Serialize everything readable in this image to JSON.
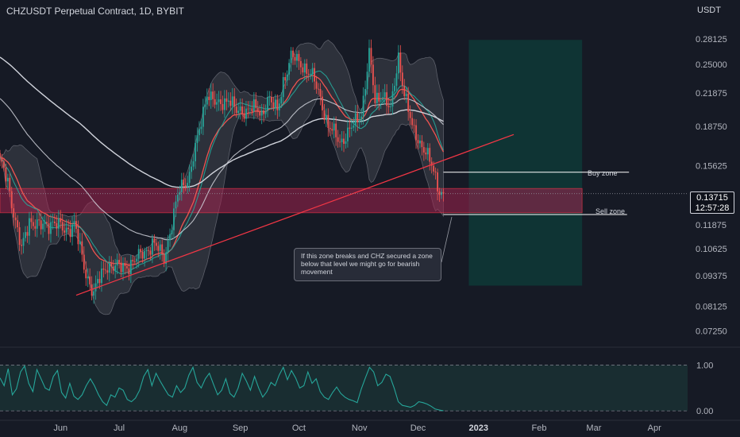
{
  "header": {
    "title": "CHZUSDT Perpetual Contract, 1D, BYBIT",
    "currency": "USDT"
  },
  "price_tag": {
    "price": "0.13715",
    "countdown": "12:57:28"
  },
  "annotations": {
    "buy_zone": "Buy zone",
    "sell_zone": "Sell zone",
    "note": "If this zone breaks and CHZ secured a zone below that level we might go for bearish movement"
  },
  "colors": {
    "background": "#161a25",
    "up": "#26a69a",
    "down": "#ef5350",
    "trendline": "#f23645",
    "zone_fill": "#a3224f",
    "target_fill": "#0e3b38",
    "bb_fill": "#4a4d57",
    "ema_fast": "#ef5350",
    "sma_mid": "#26a69a",
    "ma_long": "#d1d4dc"
  },
  "chart_data": [
    {
      "type": "candlestick",
      "title": "CHZUSDT Perpetual Contract, 1D, BYBIT",
      "ylabel": "USDT",
      "y_scale": "log",
      "ylim": [
        0.0685,
        0.305
      ],
      "y_ticks": [
        "0.28125",
        "0.25000",
        "0.21875",
        "0.18750",
        "0.15625",
        "0.13715",
        "0.11875",
        "0.10625",
        "0.09375",
        "0.08125",
        "0.07250"
      ],
      "x_ticks": [
        "Jun",
        "Jul",
        "Aug",
        "Sep",
        "Oct",
        "Nov",
        "Dec",
        "2023",
        "Feb",
        "Mar",
        "Apr"
      ],
      "x_tick_dates": [
        "2022-06-01",
        "2022-07-01",
        "2022-08-01",
        "2022-09-01",
        "2022-10-01",
        "2022-11-01",
        "2022-12-01",
        "2023-01-01",
        "2023-02-01",
        "2023-03-01",
        "2023-04-01"
      ],
      "x_range": [
        "2022-05-01",
        "2023-04-18"
      ],
      "grid": false,
      "close_anchors": [
        [
          "2022-05-01",
          0.158
        ],
        [
          "2022-05-05",
          0.146
        ],
        [
          "2022-05-09",
          0.12
        ],
        [
          "2022-05-12",
          0.105
        ],
        [
          "2022-05-16",
          0.122
        ],
        [
          "2022-05-22",
          0.117
        ],
        [
          "2022-05-28",
          0.121
        ],
        [
          "2022-06-03",
          0.115
        ],
        [
          "2022-06-08",
          0.12
        ],
        [
          "2022-06-13",
          0.097
        ],
        [
          "2022-06-18",
          0.087
        ],
        [
          "2022-06-25",
          0.099
        ],
        [
          "2022-07-02",
          0.097
        ],
        [
          "2022-07-10",
          0.101
        ],
        [
          "2022-07-18",
          0.109
        ],
        [
          "2022-07-24",
          0.102
        ],
        [
          "2022-08-01",
          0.14
        ],
        [
          "2022-08-06",
          0.15
        ],
        [
          "2022-08-10",
          0.175
        ],
        [
          "2022-08-15",
          0.221
        ],
        [
          "2022-08-20",
          0.205
        ],
        [
          "2022-08-26",
          0.215
        ],
        [
          "2022-08-30",
          0.199
        ],
        [
          "2022-09-06",
          0.205
        ],
        [
          "2022-09-12",
          0.198
        ],
        [
          "2022-09-15",
          0.215
        ],
        [
          "2022-09-20",
          0.2
        ],
        [
          "2022-09-23",
          0.232
        ],
        [
          "2022-09-27",
          0.258
        ],
        [
          "2022-10-03",
          0.25
        ],
        [
          "2022-10-08",
          0.235
        ],
        [
          "2022-10-12",
          0.215
        ],
        [
          "2022-10-16",
          0.187
        ],
        [
          "2022-10-22",
          0.175
        ],
        [
          "2022-10-28",
          0.185
        ],
        [
          "2022-11-02",
          0.2
        ],
        [
          "2022-11-06",
          0.262
        ],
        [
          "2022-11-09",
          0.21
        ],
        [
          "2022-11-13",
          0.22
        ],
        [
          "2022-11-17",
          0.2
        ],
        [
          "2022-11-21",
          0.26
        ],
        [
          "2022-11-24",
          0.22
        ],
        [
          "2022-11-28",
          0.185
        ],
        [
          "2022-12-04",
          0.17
        ],
        [
          "2022-12-08",
          0.155
        ],
        [
          "2022-12-12",
          0.14
        ],
        [
          "2022-12-14",
          0.13715
        ]
      ],
      "horizontal_zone": {
        "low": 0.1255,
        "high": 0.1405,
        "from": "2022-05-01",
        "to": "2023-02-23"
      },
      "buy_zone_line": {
        "price": 0.1515,
        "from": "2022-12-14",
        "to": "2023-03-19"
      },
      "sell_zone_line": {
        "price": 0.1245,
        "from": "2022-12-14",
        "to": "2023-03-18"
      },
      "trendline": [
        [
          "2022-06-09",
          0.0856
        ],
        [
          "2023-01-19",
          0.1805
        ]
      ],
      "target_box": {
        "low": 0.0895,
        "high": 0.28,
        "from": "2022-12-27",
        "to": "2023-02-23"
      },
      "current_price": 0.13715,
      "indicators": [
        "Bollinger Bands",
        "EMA (red)",
        "Basis (green)",
        "Long MA (white)"
      ]
    },
    {
      "type": "line",
      "ylim": [
        -0.05,
        1.25
      ],
      "y_ticks": [
        "1.00",
        "0.00"
      ],
      "band": [
        0.0,
        1.0
      ],
      "series": [
        {
          "values": [
            0.72,
            0.55,
            0.92,
            0.35,
            0.48,
            0.85,
            0.98,
            0.6,
            0.42,
            0.9,
            0.7,
            0.5,
            0.45,
            0.75,
            0.88,
            0.4,
            0.28,
            0.6,
            0.32,
            0.25,
            0.35,
            0.55,
            0.7,
            0.55,
            0.35,
            0.2,
            0.12,
            0.35,
            0.3,
            0.5,
            0.45,
            0.25,
            0.2,
            0.28,
            0.45,
            0.75,
            0.9,
            0.55,
            0.82,
            0.65,
            0.5,
            0.35,
            0.3,
            0.55,
            0.4,
            0.5,
            0.78,
            0.95,
            0.62,
            0.5,
            0.7,
            0.82,
            0.58,
            0.35,
            0.45,
            0.7,
            0.38,
            0.3,
            0.5,
            0.82,
            0.65,
            0.45,
            0.75,
            0.5,
            0.3,
            0.42,
            0.62,
            0.55,
            0.78,
            0.95,
            0.68,
            0.88,
            0.72,
            0.5,
            0.55,
            0.85,
            0.6,
            0.7,
            0.42,
            0.3,
            0.25,
            0.4,
            0.52,
            0.38,
            0.3,
            0.25,
            0.22,
            0.18,
            0.48,
            0.72,
            0.95,
            0.85,
            0.55,
            0.62,
            0.8,
            0.75,
            0.5,
            0.2,
            0.12,
            0.1,
            0.08,
            0.12,
            0.2,
            0.18,
            0.15,
            0.1,
            0.04,
            0.02,
            0.0
          ]
        }
      ]
    }
  ]
}
